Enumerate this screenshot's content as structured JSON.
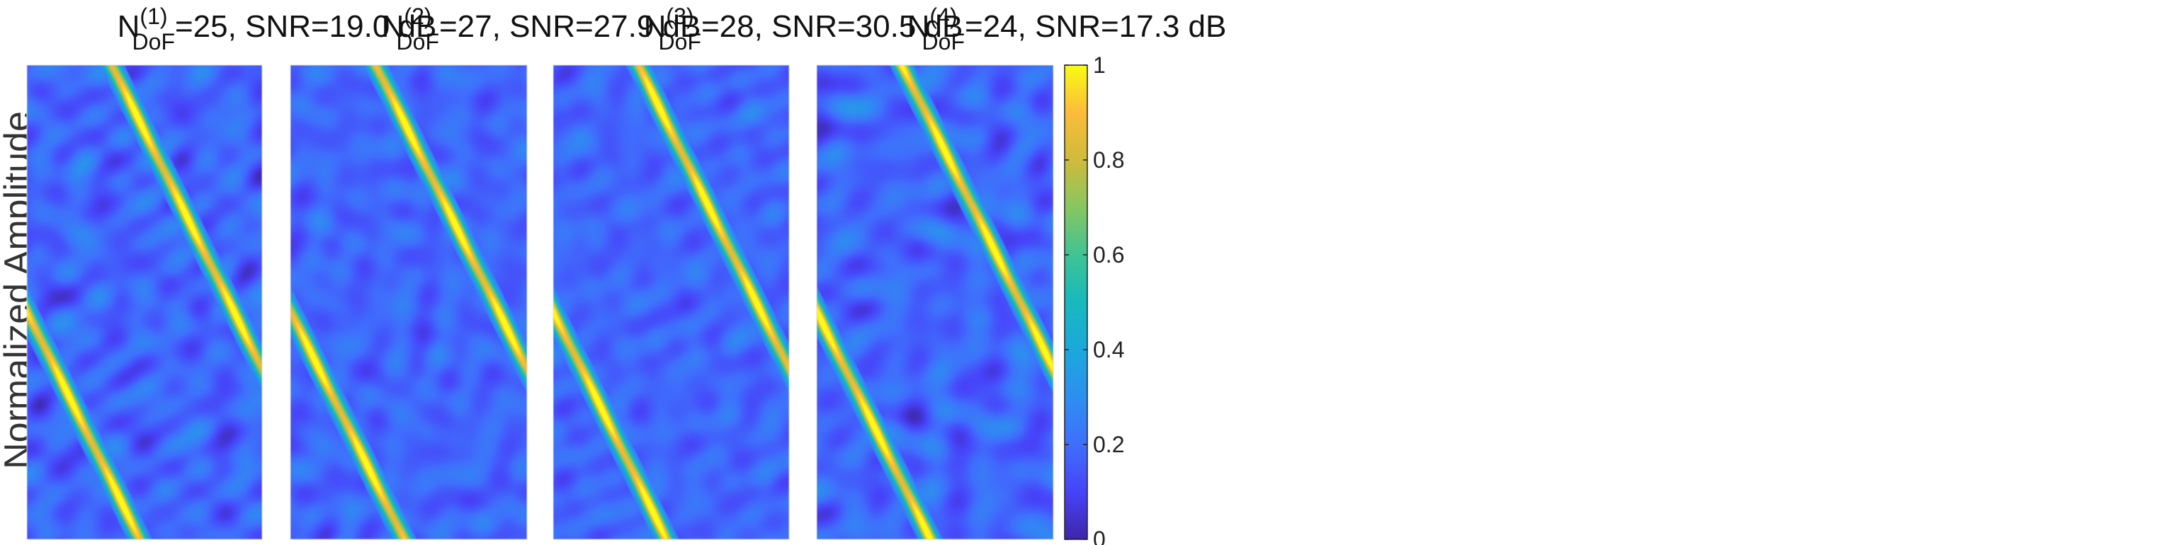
{
  "chart_data": {
    "type": "heatmap",
    "ylabel": "Normalized Amplitude",
    "colormap": "parula",
    "colorbar": {
      "range": [
        0,
        1
      ],
      "ticks": [
        0,
        0.2,
        0.4,
        0.6,
        0.8,
        1
      ],
      "tick_labels": [
        "0",
        "0.2",
        "0.4",
        "0.6",
        "0.8",
        "1"
      ]
    },
    "panels": [
      {
        "title_base": "N",
        "title_sup": "(1)",
        "title_sub": "DoF",
        "title_rest": "=25, SNR=19.0 dB",
        "n_dof": 25,
        "snr_db": 19.0,
        "seed": 11
      },
      {
        "title_base": "N",
        "title_sup": "(2)",
        "title_sub": "DoF",
        "title_rest": "=27, SNR=27.9 dB",
        "n_dof": 27,
        "snr_db": 27.9,
        "seed": 23
      },
      {
        "title_base": "N",
        "title_sup": "(3)",
        "title_sub": "DoF",
        "title_rest": "=28, SNR=30.5 dB",
        "n_dof": 28,
        "snr_db": 30.5,
        "seed": 37
      },
      {
        "title_base": "N",
        "title_sup": "(4)",
        "title_sub": "DoF",
        "title_rest": "=24, SNR=17.3 dB",
        "n_dof": 24,
        "snr_db": 17.3,
        "seed": 53
      }
    ]
  }
}
